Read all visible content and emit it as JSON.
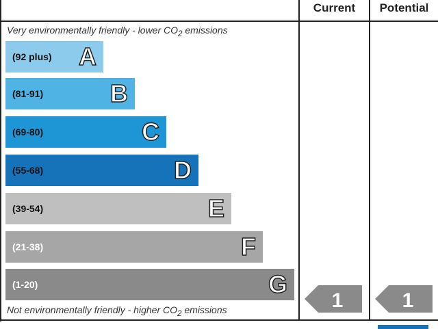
{
  "header": {
    "current": "Current",
    "potential": "Potential"
  },
  "notes": {
    "top": "Very environmentally friendly - lower CO",
    "top_sub": "2",
    "top_end": " emissions",
    "bottom": "Not environmentally friendly - higher CO",
    "bottom_sub": "2",
    "bottom_end": " emissions"
  },
  "chart_data": {
    "type": "bar",
    "bands": [
      {
        "letter": "A",
        "range": "(92 plus)",
        "color": "#8ccbeb",
        "text": "#111"
      },
      {
        "letter": "B",
        "range": "(81-91)",
        "color": "#4fb3e3",
        "text": "#111"
      },
      {
        "letter": "C",
        "range": "(69-80)",
        "color": "#1e95d4",
        "text": "#111"
      },
      {
        "letter": "D",
        "range": "(55-68)",
        "color": "#1673b9",
        "text": "#111"
      },
      {
        "letter": "E",
        "range": "(39-54)",
        "color": "#bfbfbf",
        "text": "#111"
      },
      {
        "letter": "F",
        "range": "(21-38)",
        "color": "#a6a6a6",
        "text": "#fff"
      },
      {
        "letter": "G",
        "range": "(1-20)",
        "color": "#8a8a8a",
        "text": "#fff"
      }
    ],
    "current": {
      "value": "1",
      "band": "G",
      "color": "#8a8a8a"
    },
    "potential": {
      "value": "1",
      "band": "G",
      "color": "#8a8a8a"
    }
  }
}
